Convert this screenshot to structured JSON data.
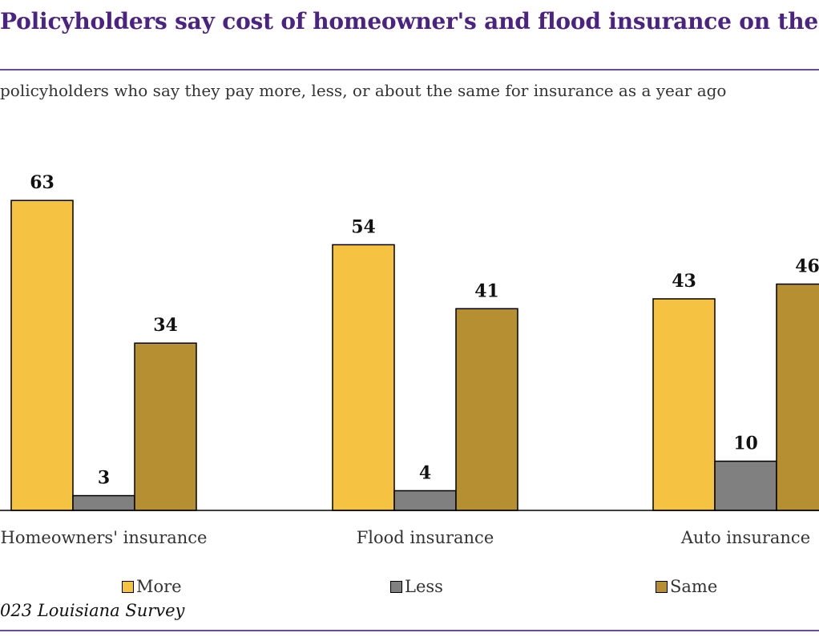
{
  "title": "Policyholders say cost of homeowner's and flood insurance on the",
  "subtitle": "policyholders who say they pay more, less, or about the same for insurance as a year ago",
  "source": "023 Louisiana Survey",
  "colors": {
    "title": "#4b2483",
    "rule": "#6a4c9c",
    "more": "#f5c242",
    "less": "#808080",
    "same": "#b68f33"
  },
  "chart_data": {
    "type": "bar",
    "categories": [
      "Homeowners' insurance",
      "Flood insurance",
      "Auto insurance"
    ],
    "series": [
      {
        "name": "More",
        "values": [
          63,
          54,
          43
        ],
        "color": "#f5c242"
      },
      {
        "name": "Less",
        "values": [
          3,
          4,
          10
        ],
        "color": "#808080"
      },
      {
        "name": "Same",
        "values": [
          34,
          41,
          46
        ],
        "color": "#b68f33"
      }
    ],
    "data_labels": true,
    "grid": false,
    "legend": "bottom"
  }
}
